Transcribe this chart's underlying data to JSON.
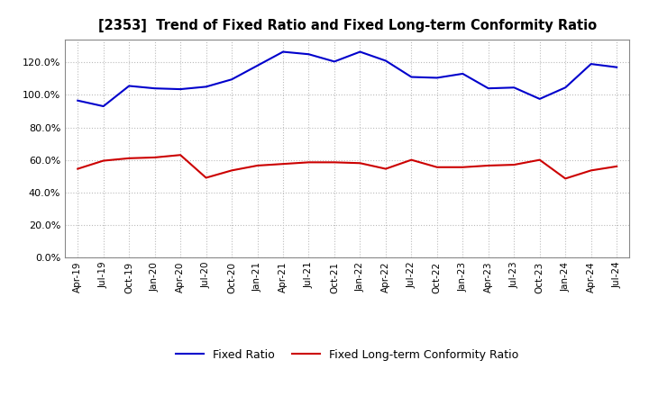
{
  "title": "[2353]  Trend of Fixed Ratio and Fixed Long-term Conformity Ratio",
  "x_labels": [
    "Apr-19",
    "Jul-19",
    "Oct-19",
    "Jan-20",
    "Apr-20",
    "Jul-20",
    "Oct-20",
    "Jan-21",
    "Apr-21",
    "Jul-21",
    "Oct-21",
    "Jan-22",
    "Apr-22",
    "Jul-22",
    "Oct-22",
    "Jan-23",
    "Apr-23",
    "Jul-23",
    "Oct-23",
    "Jan-24",
    "Apr-24",
    "Jul-24"
  ],
  "fixed_ratio": [
    96.5,
    93.0,
    105.5,
    104.0,
    103.5,
    105.0,
    109.5,
    118.0,
    126.5,
    125.0,
    120.5,
    126.5,
    121.0,
    111.0,
    110.5,
    113.0,
    104.0,
    104.5,
    97.5,
    104.5,
    119.0,
    117.0
  ],
  "fixed_lt_ratio": [
    54.5,
    59.5,
    61.0,
    61.5,
    63.0,
    49.0,
    53.5,
    56.5,
    57.5,
    58.5,
    58.5,
    58.0,
    54.5,
    60.0,
    55.5,
    55.5,
    56.5,
    57.0,
    60.0,
    48.5,
    53.5,
    56.0
  ],
  "fixed_ratio_color": "#0000CC",
  "fixed_lt_color": "#CC0000",
  "background_color": "#FFFFFF",
  "grid_color": "#AAAAAA",
  "ylim": [
    0,
    134
  ],
  "yticks": [
    0,
    20,
    40,
    60,
    80,
    100,
    120
  ],
  "legend_fixed": "Fixed Ratio",
  "legend_lt": "Fixed Long-term Conformity Ratio"
}
